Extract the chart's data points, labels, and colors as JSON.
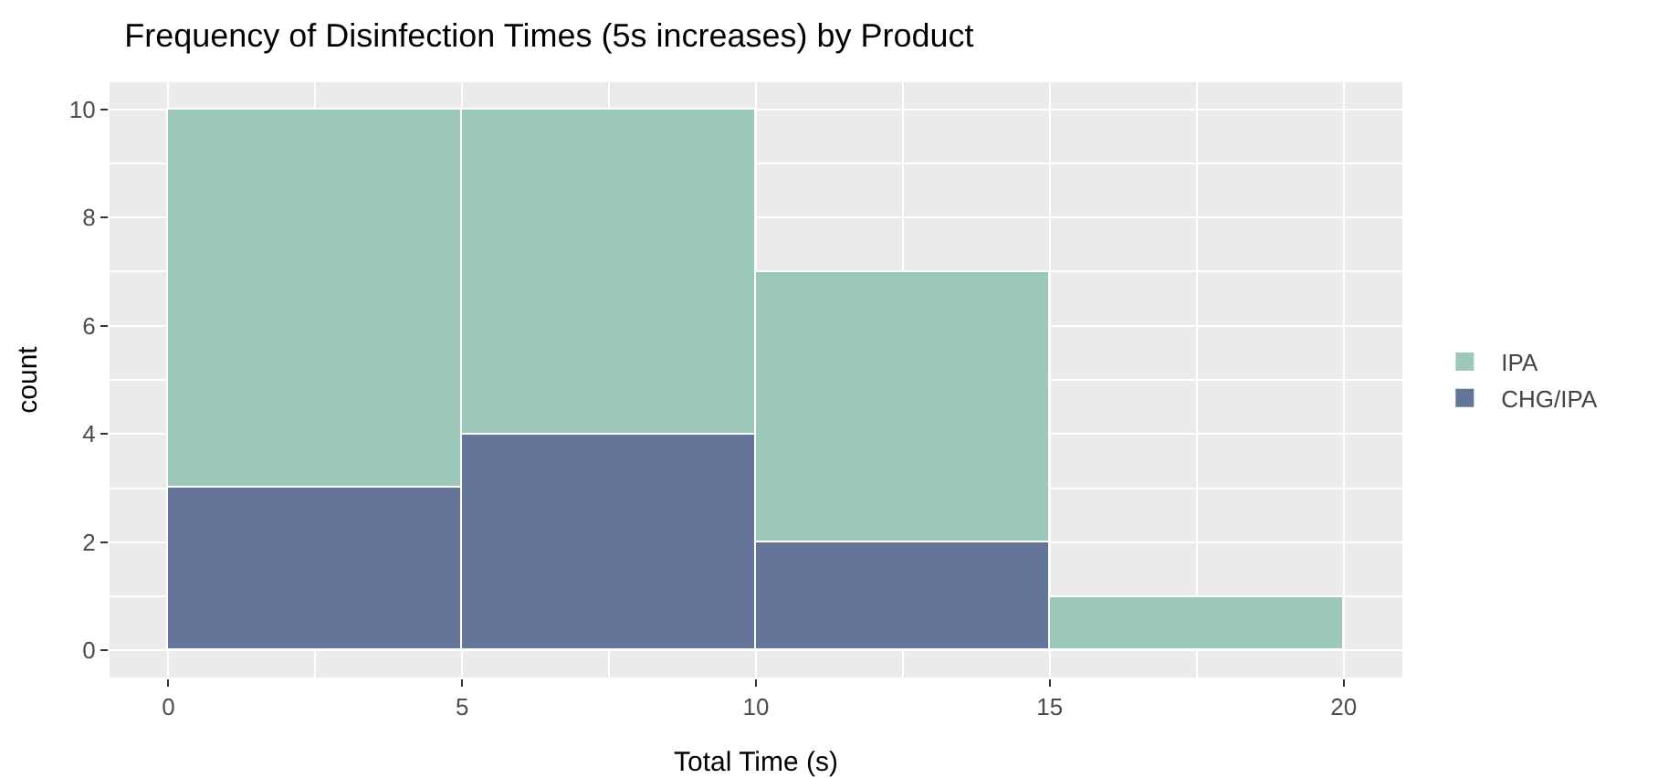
{
  "chart_data": {
    "type": "bar",
    "title": "Frequency of Disinfection Times (5s increases) by Product",
    "xlabel": "Total Time (s)",
    "ylabel": "count",
    "x": [
      2.5,
      7.5,
      12.5,
      17.5
    ],
    "series": [
      {
        "name": "CHG/IPA",
        "color": "#65759a",
        "values": [
          3,
          4,
          2,
          0
        ]
      },
      {
        "name": "IPA",
        "color": "#9cc9bc",
        "values": [
          7,
          6,
          5,
          1
        ]
      }
    ],
    "stacked": true,
    "xlim": [
      -1,
      21
    ],
    "xticks": [
      0,
      5,
      10,
      15,
      20
    ],
    "ylim": [
      -0.5,
      10.5
    ],
    "yticks": [
      0,
      2,
      4,
      6,
      8,
      10
    ],
    "grid": true,
    "legend": "right"
  }
}
